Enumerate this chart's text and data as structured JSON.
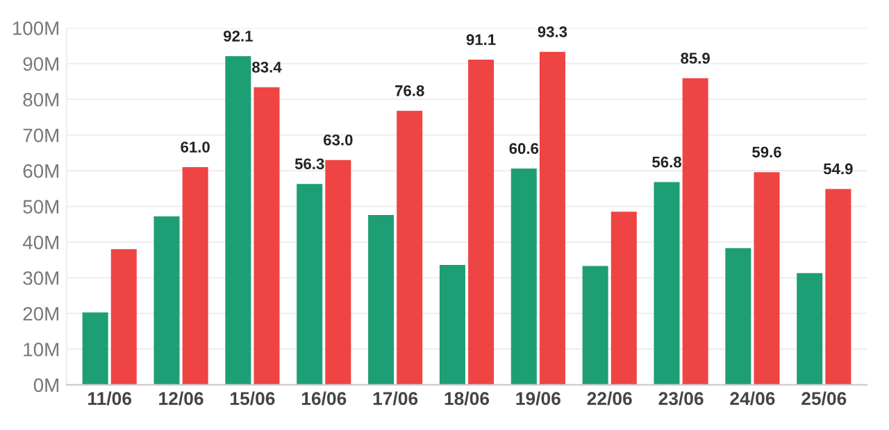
{
  "chart_data": {
    "type": "bar",
    "categories": [
      "11/06",
      "12/06",
      "15/06",
      "16/06",
      "17/06",
      "18/06",
      "19/06",
      "22/06",
      "23/06",
      "24/06",
      "25/06"
    ],
    "series": [
      {
        "color": "#1e9e74",
        "values": [
          20.3,
          47.2,
          92.1,
          56.3,
          47.6,
          33.6,
          60.6,
          33.3,
          56.8,
          38.3,
          31.3
        ],
        "value_labels": [
          null,
          null,
          "92.1",
          "56.3",
          null,
          null,
          "60.6",
          null,
          "56.8",
          null,
          null
        ]
      },
      {
        "color": "#ef4444",
        "values": [
          38.0,
          61.0,
          83.4,
          63.0,
          76.8,
          91.1,
          93.3,
          48.5,
          85.9,
          59.6,
          54.9
        ],
        "value_labels": [
          null,
          "61.0",
          "83.4",
          "63.0",
          "76.8",
          "91.1",
          "93.3",
          null,
          "85.9",
          "59.6",
          "54.9"
        ]
      }
    ],
    "ylim": [
      0,
      100
    ],
    "yticks": [
      {
        "value": 0,
        "label": "0M"
      },
      {
        "value": 10,
        "label": "10M"
      },
      {
        "value": 20,
        "label": "20M"
      },
      {
        "value": 30,
        "label": "30M"
      },
      {
        "value": 40,
        "label": "40M"
      },
      {
        "value": 50,
        "label": "50M"
      },
      {
        "value": 60,
        "label": "60M"
      },
      {
        "value": 70,
        "label": "70M"
      },
      {
        "value": 80,
        "label": "80M"
      },
      {
        "value": 90,
        "label": "90M"
      },
      {
        "value": 100,
        "label": "100M"
      }
    ],
    "grid": "y"
  }
}
